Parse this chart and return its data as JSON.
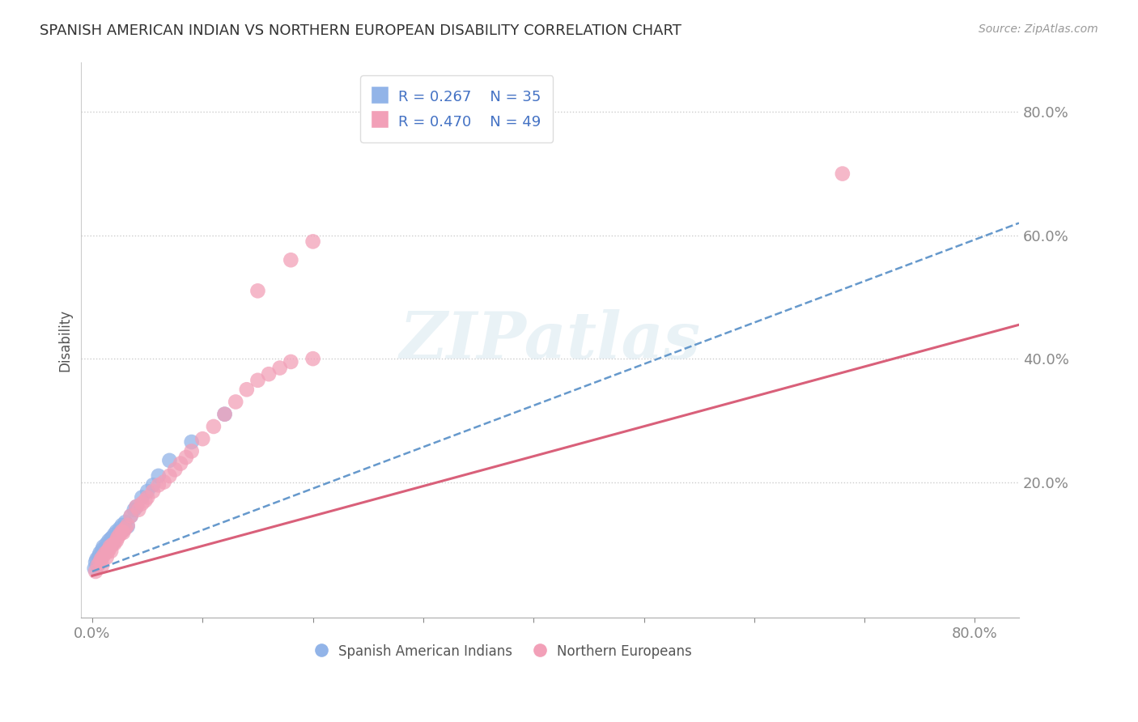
{
  "title": "SPANISH AMERICAN INDIAN VS NORTHERN EUROPEAN DISABILITY CORRELATION CHART",
  "source": "Source: ZipAtlas.com",
  "ylabel_label": "Disability",
  "xlim": [
    -0.01,
    0.84
  ],
  "ylim": [
    -0.02,
    0.88
  ],
  "blue_R": 0.267,
  "blue_N": 35,
  "pink_R": 0.47,
  "pink_N": 49,
  "blue_color": "#92b4e8",
  "pink_color": "#f2a0b8",
  "blue_line_color": "#6699cc",
  "pink_line_color": "#d9607a",
  "watermark": "ZIPatlas",
  "legend_label_blue": "Spanish American Indians",
  "legend_label_pink": "Northern Europeans",
  "blue_x": [
    0.002,
    0.003,
    0.004,
    0.005,
    0.006,
    0.007,
    0.008,
    0.009,
    0.01,
    0.011,
    0.012,
    0.013,
    0.015,
    0.016,
    0.017,
    0.018,
    0.019,
    0.02,
    0.022,
    0.024,
    0.025,
    0.027,
    0.028,
    0.03,
    0.032,
    0.035,
    0.038,
    0.04,
    0.045,
    0.05,
    0.055,
    0.06,
    0.07,
    0.09,
    0.12
  ],
  "blue_y": [
    0.06,
    0.07,
    0.075,
    0.065,
    0.08,
    0.085,
    0.078,
    0.09,
    0.095,
    0.088,
    0.092,
    0.1,
    0.105,
    0.098,
    0.108,
    0.11,
    0.102,
    0.115,
    0.12,
    0.118,
    0.125,
    0.13,
    0.122,
    0.135,
    0.128,
    0.145,
    0.155,
    0.16,
    0.175,
    0.185,
    0.195,
    0.21,
    0.235,
    0.265,
    0.31
  ],
  "pink_x": [
    0.003,
    0.005,
    0.007,
    0.008,
    0.009,
    0.01,
    0.012,
    0.013,
    0.014,
    0.015,
    0.016,
    0.017,
    0.018,
    0.02,
    0.022,
    0.023,
    0.025,
    0.027,
    0.028,
    0.03,
    0.032,
    0.035,
    0.04,
    0.042,
    0.045,
    0.048,
    0.05,
    0.055,
    0.06,
    0.065,
    0.07,
    0.075,
    0.08,
    0.085,
    0.09,
    0.1,
    0.11,
    0.12,
    0.13,
    0.14,
    0.15,
    0.16,
    0.17,
    0.18,
    0.2,
    0.15,
    0.18,
    0.2,
    0.68
  ],
  "pink_y": [
    0.055,
    0.065,
    0.07,
    0.075,
    0.065,
    0.08,
    0.085,
    0.078,
    0.088,
    0.09,
    0.095,
    0.088,
    0.098,
    0.1,
    0.105,
    0.11,
    0.115,
    0.12,
    0.118,
    0.125,
    0.13,
    0.145,
    0.16,
    0.155,
    0.165,
    0.17,
    0.175,
    0.185,
    0.195,
    0.2,
    0.21,
    0.22,
    0.23,
    0.24,
    0.25,
    0.27,
    0.29,
    0.31,
    0.33,
    0.35,
    0.365,
    0.375,
    0.385,
    0.395,
    0.4,
    0.51,
    0.56,
    0.59,
    0.7
  ],
  "blue_trend_x": [
    0.0,
    0.84
  ],
  "blue_trend_y": [
    0.055,
    0.62
  ],
  "pink_trend_x": [
    0.0,
    0.84
  ],
  "pink_trend_y": [
    0.048,
    0.455
  ]
}
